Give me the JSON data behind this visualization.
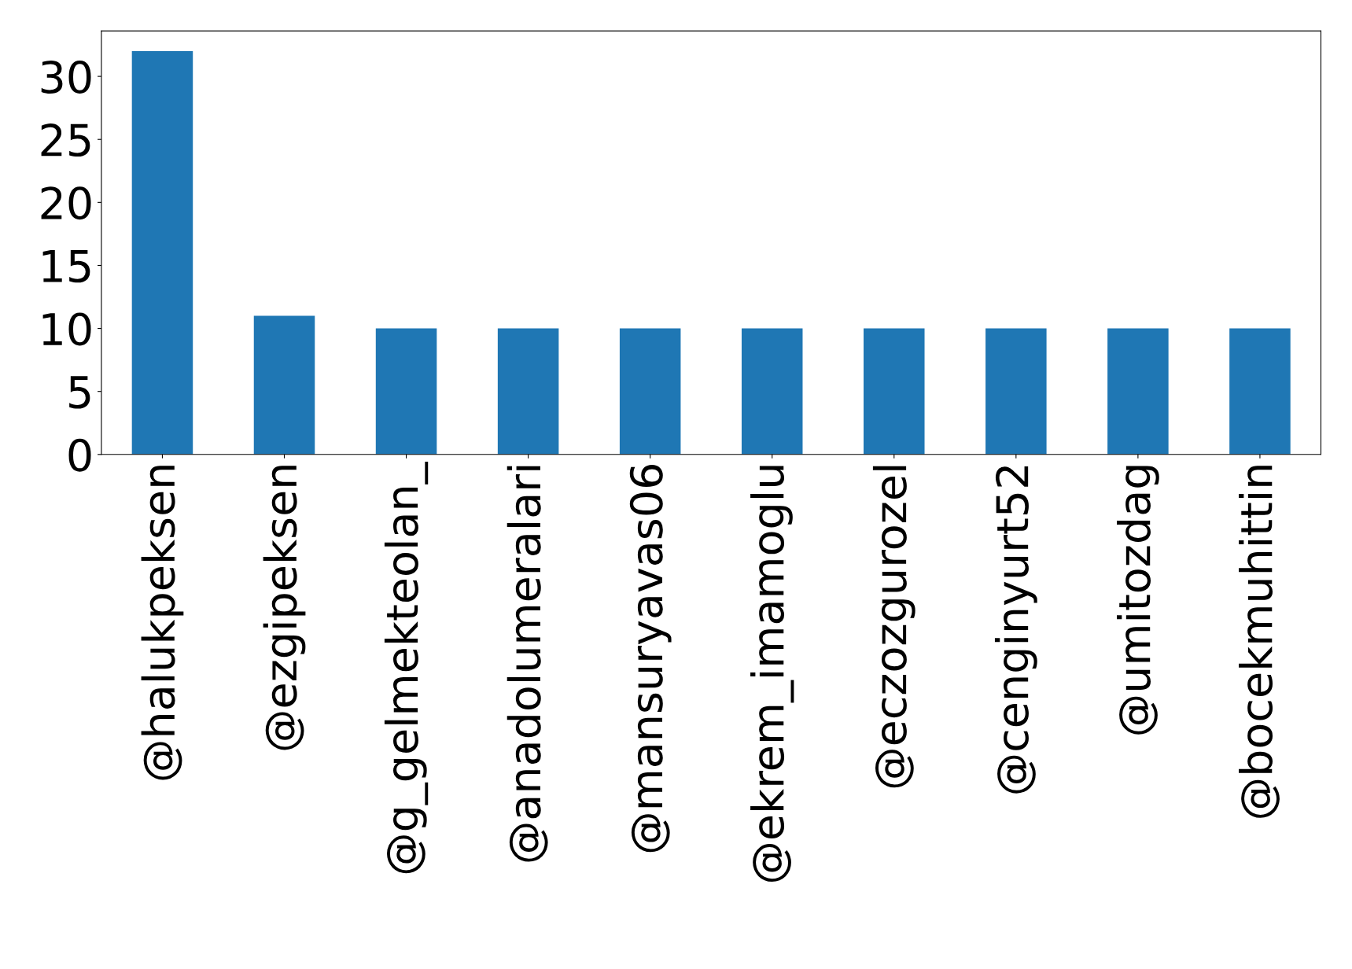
{
  "chart_data": {
    "type": "bar",
    "categories": [
      "@halukpeksen",
      "@ezgipeksen",
      "@g_gelmekteolan_",
      "@anadolumeralari",
      "@mansuryavas06",
      "@ekrem_imamoglu",
      "@eczozgurozel",
      "@cenginyurt52",
      "@umitozdag",
      "@bocekmuhittin"
    ],
    "values": [
      32,
      11,
      10,
      10,
      10,
      10,
      10,
      10,
      10,
      10
    ],
    "color": "#1f77b4",
    "ylim": [
      0,
      33.6
    ],
    "yticks": [
      0,
      5,
      10,
      15,
      20,
      25,
      30
    ],
    "grid": false,
    "legend": false
  }
}
